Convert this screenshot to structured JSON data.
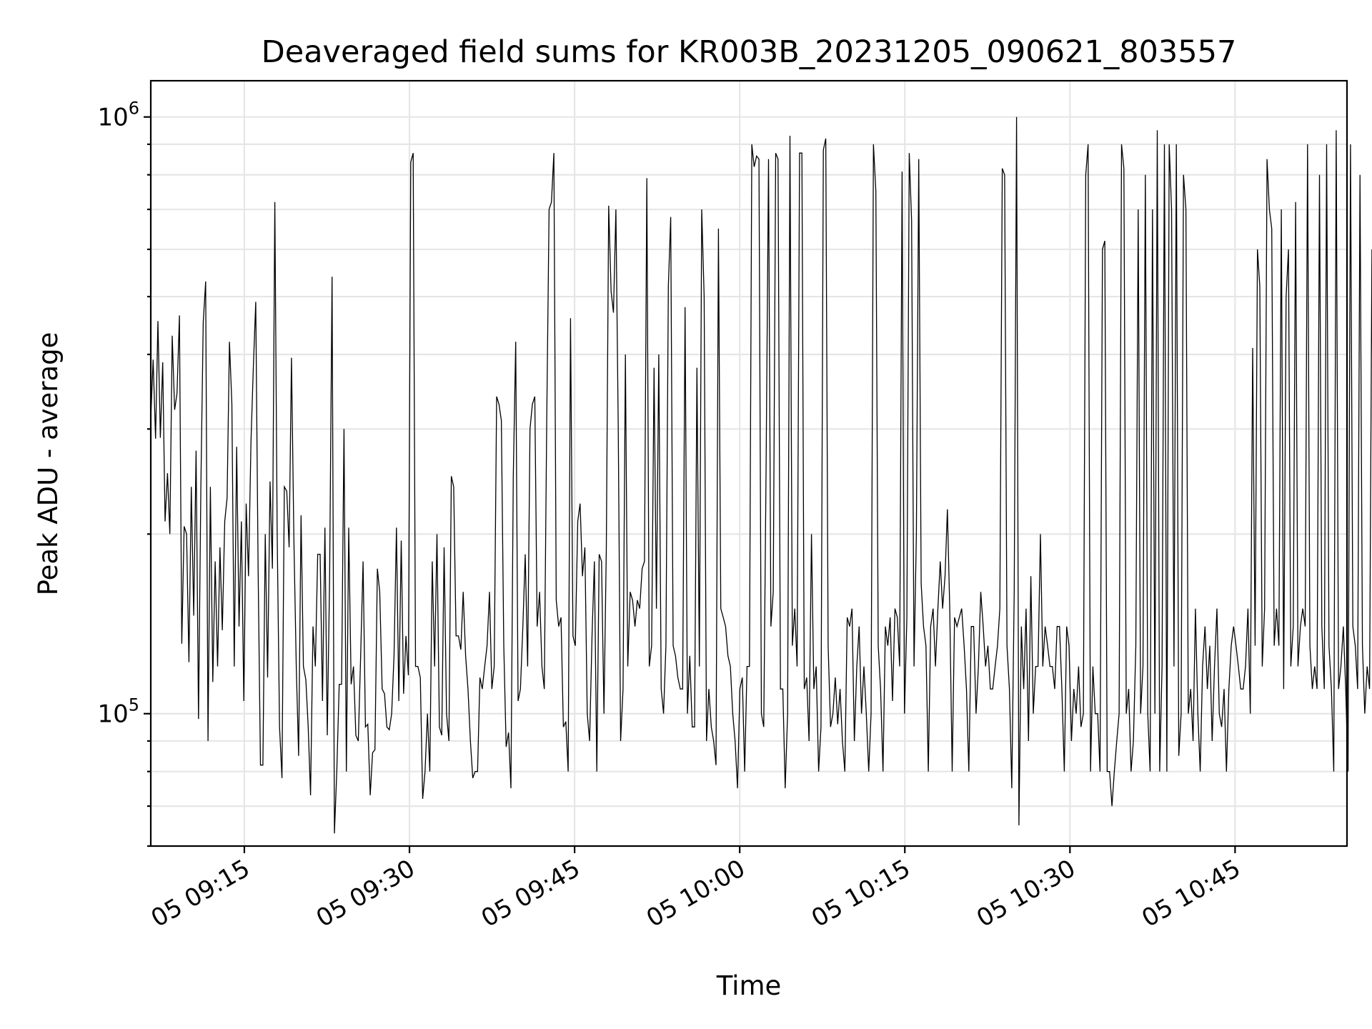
{
  "chart_data": {
    "type": "line",
    "title": "Deaveraged field sums for KR003B_20231205_090621_803557",
    "xlabel": "Time",
    "ylabel": "Peak ADU - average",
    "yscale": "log",
    "xlim": [
      "2023-12-05T09:06:30",
      "2023-12-05T10:55:10"
    ],
    "ylim": [
      60000,
      1150000
    ],
    "grid": "both (major and minor)",
    "x_ticks": [
      {
        "t": "2023-12-05T09:15",
        "label": "05 09:15"
      },
      {
        "t": "2023-12-05T09:30",
        "label": "05 09:30"
      },
      {
        "t": "2023-12-05T09:45",
        "label": "05 09:45"
      },
      {
        "t": "2023-12-05T10:00",
        "label": "05 10:00"
      },
      {
        "t": "2023-12-05T10:15",
        "label": "05 10:15"
      },
      {
        "t": "2023-12-05T10:30",
        "label": "05 10:30"
      },
      {
        "t": "2023-12-05T10:45",
        "label": "05 10:45"
      }
    ],
    "y_ticks": [
      {
        "value": 100000,
        "base": "10",
        "exp": "5"
      },
      {
        "value": 1000000,
        "base": "10",
        "exp": "6"
      }
    ],
    "series_color": "#000000",
    "series": [
      {
        "x_start": "2023-12-05T09:06:30",
        "x_step_seconds": 13,
        "values": [
          312000,
          392000,
          289000,
          455000,
          290000,
          388000,
          210000,
          253000,
          200000,
          430000,
          323000,
          344000,
          465000,
          131000,
          206000,
          200000,
          122000,
          240000,
          146000,
          276000,
          98000,
          240000,
          453000,
          530000,
          90000,
          240000,
          113000,
          180000,
          120000,
          190000,
          138000,
          210000,
          230000,
          420000,
          330000,
          120000,
          280000,
          140000,
          210000,
          105000,
          225000,
          170000,
          285000,
          380000,
          490000,
          175000,
          82000,
          82000,
          200000,
          115000,
          245000,
          175000,
          720000,
          200000,
          95000,
          78000,
          240000,
          236000,
          190000,
          395000,
          195000,
          120000,
          85000,
          215000,
          120000,
          114000,
          95000,
          73000,
          140000,
          120000,
          185000,
          185000,
          105000,
          205000,
          92000,
          170000,
          540000,
          63000,
          80000,
          112000,
          112000,
          300000,
          80000,
          205000,
          112000,
          120000,
          92000,
          90000,
          125000,
          180000,
          95000,
          96000,
          73000,
          86000,
          87000,
          175000,
          160000,
          110000,
          108000,
          95000,
          94000,
          100000,
          125000,
          205000,
          105000,
          195000,
          108000,
          135000,
          116000,
          840000,
          870000,
          120000,
          120000,
          115000,
          72000,
          80000,
          100000,
          80000,
          180000,
          120000,
          200000,
          95000,
          92000,
          190000,
          100000,
          90000,
          250000,
          240000,
          135000,
          135000,
          128000,
          160000,
          125000,
          110000,
          90000,
          78000,
          80000,
          80000,
          115000,
          110000,
          120000,
          130000,
          160000,
          110000,
          120000,
          340000,
          330000,
          310000,
          130000,
          88000,
          93000,
          75000,
          250000,
          420000,
          105000,
          110000,
          140000,
          185000,
          120000,
          300000,
          330000,
          340000,
          140000,
          160000,
          120000,
          110000,
          310000,
          700000,
          720000,
          870000,
          155000,
          140000,
          145000,
          95000,
          97000,
          80000,
          460000,
          135000,
          130000,
          210000,
          225000,
          170000,
          190000,
          100000,
          90000,
          135000,
          180000,
          80000,
          185000,
          180000,
          100000,
          190000,
          710000,
          510000,
          470000,
          700000,
          300000,
          90000,
          110000,
          400000,
          120000,
          160000,
          155000,
          140000,
          155000,
          150000,
          175000,
          180000,
          790000,
          120000,
          130000,
          380000,
          150000,
          400000,
          110000,
          100000,
          130000,
          520000,
          680000,
          130000,
          125000,
          115000,
          110000,
          110000,
          480000,
          100000,
          125000,
          95000,
          95000,
          380000,
          120000,
          700000,
          500000,
          90000,
          110000,
          95000,
          90000,
          82000,
          650000,
          150000,
          145000,
          140000,
          125000,
          120000,
          100000,
          90000,
          75000,
          110000,
          115000,
          80000,
          120000,
          120000,
          900000,
          825000,
          860000,
          850000,
          100000,
          95000,
          260000,
          850000,
          140000,
          160000,
          870000,
          850000,
          110000,
          110000,
          75000,
          100000,
          930000,
          130000,
          150000,
          120000,
          870000,
          870000,
          110000,
          115000,
          90000,
          200000,
          110000,
          120000,
          80000,
          95000,
          880000,
          920000,
          130000,
          95000,
          100000,
          115000,
          96000,
          110000,
          90000,
          80000,
          145000,
          140000,
          150000,
          90000,
          120000,
          140000,
          100000,
          120000,
          100000,
          80000,
          100000,
          900000,
          750000,
          130000,
          110000,
          80000,
          140000,
          130000,
          145000,
          105000,
          150000,
          145000,
          120000,
          810000,
          100000,
          145000,
          870000,
          670000,
          120000,
          200000,
          850000,
          165000,
          140000,
          130000,
          80000,
          140000,
          150000,
          120000,
          150000,
          180000,
          150000,
          170000,
          220000,
          150000,
          80000,
          145000,
          140000,
          145000,
          150000,
          130000,
          110000,
          80000,
          140000,
          140000,
          100000,
          120000,
          160000,
          140000,
          120000,
          130000,
          110000,
          110000,
          120000,
          130000,
          150000,
          820000,
          800000,
          130000,
          110000,
          75000,
          160000,
          1000000,
          65000,
          140000,
          110000,
          150000,
          90000,
          170000,
          100000,
          120000,
          120000,
          200000,
          120000,
          140000,
          130000,
          120000,
          120000,
          110000,
          140000,
          140000,
          110000,
          80000,
          140000,
          130000,
          90000,
          110000,
          100000,
          120000,
          95000,
          100000,
          800000,
          900000,
          80000,
          120000,
          100000,
          100000,
          80000,
          600000,
          620000,
          80000,
          80000,
          70000,
          80000,
          90000,
          100000,
          900000,
          820000,
          100000,
          110000,
          80000,
          90000,
          130000,
          700000,
          100000,
          120000,
          800000,
          100000,
          80000,
          700000,
          100000,
          950000,
          80000,
          120000,
          900000,
          80000,
          900000,
          700000,
          120000,
          900000,
          85000,
          100000,
          800000,
          700000,
          100000,
          110000,
          90000,
          150000,
          100000,
          80000,
          120000,
          140000,
          110000,
          130000,
          90000,
          120000,
          150000,
          100000,
          95000,
          110000,
          80000,
          110000,
          130000,
          140000,
          130000,
          120000,
          110000,
          110000,
          120000,
          150000,
          100000,
          410000,
          130000,
          600000,
          520000,
          120000,
          150000,
          850000,
          700000,
          650000,
          130000,
          150000,
          130000,
          700000,
          110000,
          500000,
          600000,
          120000,
          140000,
          720000,
          120000,
          140000,
          150000,
          140000,
          900000,
          130000,
          110000,
          120000,
          110000,
          800000,
          140000,
          110000,
          900000,
          130000,
          110000,
          80000,
          950000,
          110000,
          120000,
          140000,
          110000,
          80000,
          900000,
          140000,
          130000,
          110000,
          800000,
          130000,
          100000,
          120000,
          110000,
          600000,
          90000,
          110000,
          110000,
          130000,
          900000,
          110000,
          140000,
          90000,
          110000,
          700000,
          700000,
          130000,
          110000,
          120000,
          110000,
          120000,
          950000,
          110000,
          120000,
          130000,
          110000,
          120000,
          110000,
          120000,
          1000000,
          900000,
          120000,
          160000,
          100000,
          70000,
          100000,
          90000,
          100000,
          900000,
          700000,
          800000,
          600000,
          900000,
          880000,
          85000,
          850000,
          800000,
          750000,
          190000,
          180000,
          100000,
          700000,
          190000,
          120000,
          90000,
          120000,
          600000,
          750000,
          760000,
          130000,
          140000,
          850000,
          860000,
          120000,
          130000,
          90000,
          140000,
          120000,
          120000,
          800000,
          680000,
          130000,
          120000,
          110000,
          700000,
          740000,
          700000,
          650000,
          600000,
          820000,
          800000,
          120000,
          130000,
          700000,
          830000,
          130000,
          120000,
          700000,
          660000,
          780000,
          480000,
          820000,
          850000,
          120000,
          110000,
          800000,
          800000,
          400000,
          850000,
          800000
        ]
      }
    ]
  }
}
